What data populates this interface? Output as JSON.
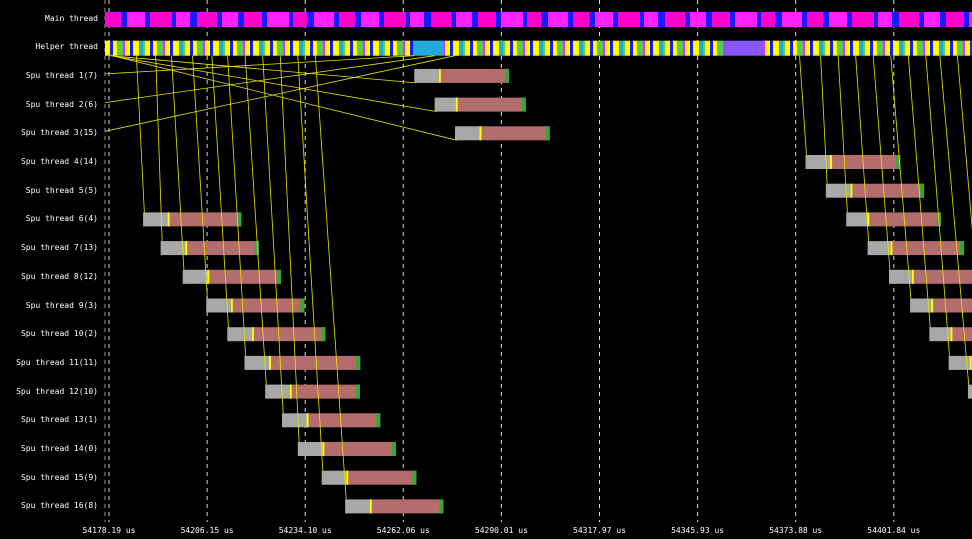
{
  "thread_labels": [
    "Main thread",
    "Helper thread",
    "Spu thread 1(7)",
    "Spu thread 2(6)",
    "Spu thread 3(15)",
    "Spu thread 4(14)",
    "Spu thread 5(5)",
    "Spu thread 6(4)",
    "Spu thread 7(13)",
    "Spu thread 8(12)",
    "Spu thread 9(3)",
    "Spu thread 10(2)",
    "Spu thread 11(11)",
    "Spu thread 12(10)",
    "Spu thread 13(1)",
    "Spu thread 14(0)",
    "Spu thread 15(9)",
    "Spu thread 16(8)"
  ],
  "time_axis": {
    "unit": "us",
    "start_us": 54178.19,
    "step_us": 27.96,
    "ticks": [
      "54178.19 us",
      "54206.15 us",
      "54234.10 us",
      "54262.06 us",
      "54290.01 us",
      "54317.97 us",
      "54345.93 us",
      "54373.88 us",
      "54401.84 us"
    ]
  },
  "colors": {
    "background": "#000000",
    "main_thread_a": "#ff00cc",
    "main_thread_b": "#1a1aff",
    "main_thread_c": "#ff22ff",
    "helper_yellow": "#ffff00",
    "helper_blue": "#1a1aff",
    "helper_green": "#55cc55",
    "helper_cyan": "#22aadd",
    "helper_violet": "#8855ff",
    "helper_magenta": "#ff22ff",
    "task_wait": "#a8a8a8",
    "task_run": "#b46d6d",
    "task_marker_start": "#ffff00",
    "task_marker_end": "#33aa33",
    "link_line": "#e6e600",
    "grid_line": "#ffffff"
  },
  "tasks": [
    {
      "thread": 2,
      "start_us": 54265.2,
      "wait_us": 7.0,
      "run_us": 20.0,
      "spawned_at_us": 54178.5
    },
    {
      "thread": 3,
      "start_us": 54271.0,
      "wait_us": 6.0,
      "run_us": 20.0,
      "spawned_at_us": 54178.8
    },
    {
      "thread": 4,
      "start_us": 54276.8,
      "wait_us": 7.0,
      "run_us": 20.0,
      "spawned_at_us": 54179.1
    },
    {
      "thread": 5,
      "start_us": 54376.7,
      "wait_us": 7.0,
      "run_us": 20.0,
      "spawned_at_us": 54375.0
    },
    {
      "thread": 6,
      "start_us": 54382.5,
      "wait_us": 7.0,
      "run_us": 21.0,
      "spawned_at_us": 54381.0
    },
    {
      "thread": 7,
      "start_us": 54187.9,
      "wait_us": 7.0,
      "run_us": 21.0,
      "spawned_at_us": 54186.0
    },
    {
      "thread": 8,
      "start_us": 54192.9,
      "wait_us": 7.0,
      "run_us": 21.0,
      "spawned_at_us": 54191.5
    },
    {
      "thread": 9,
      "start_us": 54199.2,
      "wait_us": 7.0,
      "run_us": 21.0,
      "spawned_at_us": 54196.0
    },
    {
      "thread": 10,
      "start_us": 54205.9,
      "wait_us": 7.0,
      "run_us": 21.0,
      "spawned_at_us": 54202.0
    },
    {
      "thread": 11,
      "start_us": 54211.9,
      "wait_us": 7.0,
      "run_us": 21.0,
      "spawned_at_us": 54207.5
    },
    {
      "thread": 12,
      "start_us": 54216.8,
      "wait_us": 7.0,
      "run_us": 26.0,
      "spawned_at_us": 54212.0
    },
    {
      "thread": 13,
      "start_us": 54222.7,
      "wait_us": 7.0,
      "run_us": 20.0,
      "spawned_at_us": 54217.0
    },
    {
      "thread": 14,
      "start_us": 54227.5,
      "wait_us": 7.0,
      "run_us": 21.0,
      "spawned_at_us": 54222.0
    },
    {
      "thread": 15,
      "start_us": 54232.0,
      "wait_us": 7.0,
      "run_us": 21.0,
      "spawned_at_us": 54227.0
    },
    {
      "thread": 16,
      "start_us": 54238.8,
      "wait_us": 7.0,
      "run_us": 20.0,
      "spawned_at_us": 54232.0
    },
    {
      "thread": 17,
      "start_us": 54245.5,
      "wait_us": 7.0,
      "run_us": 21.0,
      "spawned_at_us": 54237.0
    }
  ],
  "right_tasks": [
    {
      "thread": 7,
      "start_us": 54388.3,
      "wait_us": 6.0,
      "run_us": 21.0,
      "spawned_at_us": 54386.0
    },
    {
      "thread": 8,
      "start_us": 54394.4,
      "wait_us": 6.5,
      "run_us": 21.0,
      "spawned_at_us": 54391.0
    },
    {
      "thread": 9,
      "start_us": 54400.5,
      "wait_us": 6.5,
      "run_us": 20.0,
      "spawned_at_us": 54396.0
    },
    {
      "thread": 10,
      "start_us": 54406.5,
      "wait_us": 6.0,
      "run_us": 20.0,
      "spawned_at_us": 54401.0
    },
    {
      "thread": 11,
      "start_us": 54412.0,
      "wait_us": 6.0,
      "run_us": 20.0,
      "spawned_at_us": 54406.0
    },
    {
      "thread": 12,
      "start_us": 54417.5,
      "wait_us": 6.0,
      "run_us": 20.0,
      "spawned_at_us": 54411.0
    },
    {
      "thread": 13,
      "start_us": 54423.0,
      "wait_us": 6.0,
      "run_us": 20.0,
      "spawned_at_us": 54415.0
    },
    {
      "thread": 14,
      "start_us": 54428.5,
      "wait_us": 6.0,
      "run_us": 20.0,
      "spawned_at_us": 54420.0
    }
  ],
  "late_links": [
    {
      "to_thread": 13,
      "to_us": 54190.0,
      "from_us": 54186.0
    },
    {
      "to_thread": 14,
      "to_us": 54212.0,
      "from_us": 54190.0
    }
  ]
}
